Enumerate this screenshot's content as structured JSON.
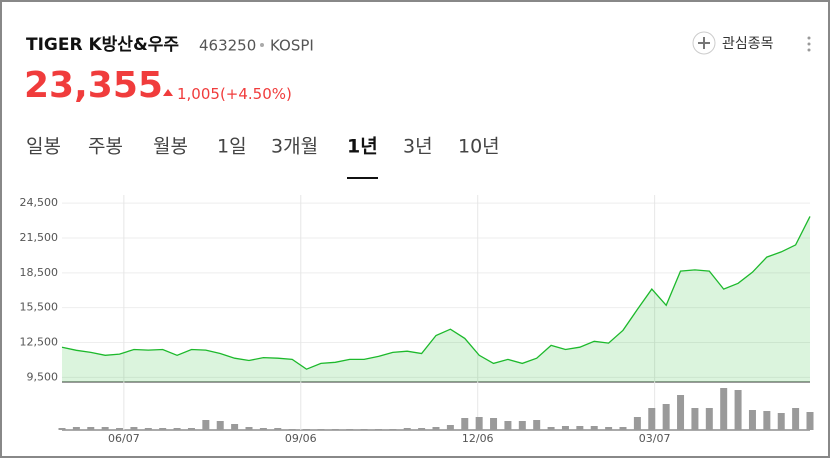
{
  "header": {
    "title": "TIGER K방산&우주",
    "code": "463250",
    "market": "KOSPI",
    "price": "23,355",
    "change": "1,005",
    "change_pct": "(+4.50%)",
    "watch_button": "관심종목"
  },
  "tabs": {
    "items": [
      "일봉",
      "주봉",
      "월봉",
      "1일",
      "3개월",
      "1년",
      "3년",
      "10년"
    ],
    "active": 5
  },
  "chart_data": [
    {
      "type": "area",
      "color": "#1db92c",
      "values": [
        12100,
        11830,
        11650,
        11400,
        11500,
        11900,
        11850,
        11900,
        11400,
        11900,
        11850,
        11550,
        11150,
        10950,
        11200,
        11150,
        11050,
        10200,
        10700,
        10800,
        11050,
        11050,
        11300,
        11650,
        11750,
        11550,
        13100,
        13650,
        12850,
        11400,
        10700,
        11050,
        10700,
        11150,
        12250,
        11900,
        12100,
        12600,
        12450,
        13550,
        15350,
        17100,
        15700,
        18650,
        18750,
        18650,
        17100,
        17600,
        18550,
        19850,
        20300,
        20900,
        23355
      ],
      "xlim": [
        0,
        52
      ],
      "ylim": [
        9100,
        25200
      ],
      "yticks": [
        {
          "value": 9500,
          "label": "9,500"
        },
        {
          "value": 12500,
          "label": "12,500"
        },
        {
          "value": 15500,
          "label": "15,500"
        },
        {
          "value": 18500,
          "label": "18,500"
        },
        {
          "value": 21500,
          "label": "21,500"
        },
        {
          "value": 24500,
          "label": "24,500"
        }
      ],
      "xticks": [
        {
          "value": 4.3,
          "label": "06/07"
        },
        {
          "value": 16.6,
          "label": "09/06"
        },
        {
          "value": 28.9,
          "label": "12/06"
        },
        {
          "value": 41.2,
          "label": "03/07"
        }
      ],
      "grid": true
    },
    {
      "type": "bar",
      "color": "#9a9a9a",
      "values": [
        2,
        3,
        3,
        3,
        2,
        3,
        2,
        2,
        2,
        2,
        10,
        9,
        6,
        3,
        2,
        2,
        1,
        1,
        1,
        1,
        1,
        1,
        1,
        1,
        2,
        2,
        3,
        5,
        12,
        13,
        12,
        9,
        9,
        10,
        3,
        4,
        4,
        4,
        3,
        3,
        13,
        22,
        26,
        35,
        22,
        22,
        42,
        40,
        20,
        19,
        17,
        22,
        18
      ],
      "xlim": [
        0,
        52
      ],
      "ylim": [
        0,
        46
      ]
    }
  ]
}
